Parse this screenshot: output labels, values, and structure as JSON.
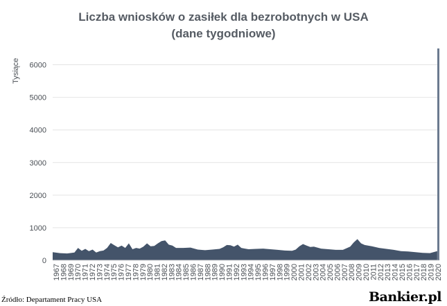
{
  "title_line1": "Liczba wniosków o zasiłek dla bezrobotnych w USA",
  "title_line2": "(dane tygodniowe)",
  "source": "Źródło: Departament Pracy USA",
  "logo": "Bankier.pl",
  "colors": {
    "area": "#44546a",
    "spike": "#6b7a8f",
    "text": "#555b63"
  },
  "chart_data": {
    "type": "area",
    "title": "Liczba wniosków o zasiłek dla bezrobotnych w USA (dane tygodniowe)",
    "ylabel": "Tysiące",
    "ylim": [
      0,
      6500
    ],
    "yticks": [
      0,
      1000,
      2000,
      3000,
      4000,
      5000,
      6000
    ],
    "xticks": [
      "1967",
      "1968",
      "1969",
      "1970",
      "1971",
      "1972",
      "1973",
      "1974",
      "1975",
      "1976",
      "1977",
      "1978",
      "1979",
      "1980",
      "1981",
      "1982",
      "1983",
      "1984",
      "1985",
      "1986",
      "1987",
      "1988",
      "1989",
      "1990",
      "1991",
      "1992",
      "1993",
      "1994",
      "1995",
      "1996",
      "1997",
      "1998",
      "1999",
      "2000",
      "2001",
      "2002",
      "2003",
      "2004",
      "2005",
      "2006",
      "2007",
      "2008",
      "2009",
      "2010",
      "2011",
      "2012",
      "2013",
      "2014",
      "2015",
      "2016",
      "2017",
      "2018",
      "2019",
      "2020"
    ],
    "grid": true,
    "x": [
      1967,
      1968,
      1969,
      1970,
      1970.5,
      1971,
      1971.5,
      1972,
      1972.5,
      1973,
      1973.5,
      1974,
      1974.5,
      1975,
      1975.5,
      1976,
      1976.5,
      1977,
      1977.5,
      1978,
      1978.5,
      1979,
      1979.5,
      1980,
      1980.5,
      1981,
      1981.5,
      1982,
      1982.5,
      1983,
      1983.5,
      1984,
      1985,
      1986,
      1987,
      1988,
      1989,
      1990,
      1990.5,
      1991,
      1991.5,
      1992,
      1992.5,
      1993,
      1993.5,
      1994,
      1995,
      1996,
      1997,
      1998,
      1999,
      2000,
      2000.5,
      2001,
      2001.5,
      2002,
      2002.5,
      2003,
      2004,
      2005,
      2006,
      2007,
      2008,
      2008.5,
      2009,
      2009.5,
      2010,
      2011,
      2012,
      2013,
      2014,
      2015,
      2016,
      2017,
      2018,
      2019,
      2020,
      2020.2
    ],
    "y": [
      250,
      220,
      210,
      240,
      380,
      290,
      350,
      280,
      330,
      240,
      280,
      300,
      380,
      530,
      460,
      400,
      450,
      380,
      520,
      340,
      380,
      360,
      420,
      520,
      430,
      440,
      520,
      590,
      610,
      480,
      450,
      380,
      380,
      390,
      330,
      310,
      330,
      350,
      400,
      470,
      460,
      420,
      480,
      380,
      360,
      340,
      350,
      360,
      340,
      320,
      300,
      290,
      330,
      430,
      500,
      450,
      410,
      420,
      360,
      340,
      320,
      320,
      420,
      550,
      650,
      520,
      470,
      430,
      380,
      350,
      320,
      280,
      270,
      250,
      230,
      220,
      280,
      6500
    ]
  }
}
